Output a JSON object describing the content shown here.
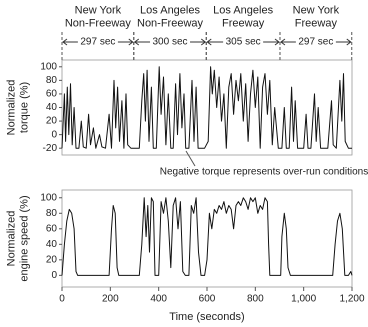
{
  "chart_data": [
    {
      "type": "line",
      "ylabel": "Normalized\ntorque (%)",
      "color": "#111",
      "xlim": [
        0,
        1200
      ],
      "ylim": [
        -30,
        110
      ],
      "yticks": [
        -20,
        0,
        20,
        40,
        60,
        80,
        100
      ],
      "annotation": "Negative torque represents over-run conditions",
      "segments": [
        {
          "label": "New York\nNon-Freeway",
          "duration": "297 sec",
          "start": 0,
          "end": 297
        },
        {
          "label": "Los Angeles\nNon-Freeway",
          "duration": "300 sec",
          "start": 297,
          "end": 597
        },
        {
          "label": "Los Angeles\nFreeway",
          "duration": "305 sec",
          "start": 597,
          "end": 902
        },
        {
          "label": "New York\nFreeway",
          "duration": "297 sec",
          "start": 902,
          "end": 1199
        }
      ],
      "x": [
        0,
        10,
        15,
        22,
        28,
        35,
        42,
        50,
        58,
        70,
        80,
        88,
        100,
        110,
        118,
        130,
        140,
        155,
        165,
        180,
        195,
        205,
        215,
        222,
        230,
        238,
        248,
        256,
        265,
        272,
        285,
        300,
        320,
        330,
        338,
        345,
        352,
        360,
        370,
        378,
        390,
        402,
        410,
        420,
        430,
        440,
        450,
        460,
        470,
        478,
        488,
        496,
        505,
        512,
        525,
        538,
        546,
        555,
        563,
        575,
        590,
        605,
        615,
        622,
        630,
        640,
        650,
        660,
        670,
        680,
        690,
        700,
        710,
        720,
        730,
        740,
        750,
        760,
        770,
        780,
        790,
        800,
        810,
        820,
        830,
        840,
        850,
        860,
        870,
        880,
        895,
        910,
        920,
        928,
        940,
        950,
        958,
        965,
        975,
        990,
        1000,
        1010,
        1018,
        1030,
        1045,
        1052,
        1060,
        1070,
        1085,
        1100,
        1115,
        1122,
        1135,
        1150,
        1158,
        1165,
        1172,
        1185,
        1200
      ],
      "values": [
        -20,
        60,
        -10,
        70,
        0,
        75,
        -15,
        40,
        -20,
        -20,
        20,
        -18,
        -20,
        30,
        -15,
        10,
        -20,
        0,
        -18,
        -20,
        30,
        -20,
        80,
        10,
        70,
        -10,
        50,
        -20,
        60,
        -15,
        -20,
        -20,
        -20,
        50,
        90,
        20,
        95,
        -10,
        70,
        -20,
        -20,
        100,
        30,
        85,
        -15,
        60,
        -20,
        -20,
        75,
        0,
        90,
        10,
        60,
        -20,
        -20,
        80,
        -10,
        70,
        -20,
        -20,
        -20,
        -10,
        100,
        60,
        95,
        40,
        85,
        20,
        60,
        -20,
        70,
        90,
        30,
        80,
        50,
        90,
        20,
        75,
        -10,
        60,
        95,
        40,
        85,
        -20,
        70,
        90,
        30,
        80,
        -15,
        40,
        -20,
        -20,
        40,
        -20,
        -20,
        70,
        -10,
        50,
        -20,
        -20,
        -20,
        30,
        -20,
        -20,
        60,
        -10,
        40,
        -20,
        -20,
        -20,
        50,
        -15,
        -20,
        80,
        20,
        90,
        -10,
        -20,
        -20
      ]
    },
    {
      "type": "line",
      "ylabel": "Normalized\nengine speed (%)",
      "xlabel": "Time (seconds)",
      "color": "#111",
      "xlim": [
        0,
        1200
      ],
      "ylim": [
        -15,
        110
      ],
      "yticks": [
        0,
        20,
        40,
        60,
        80,
        100
      ],
      "xticks": [
        0,
        200,
        400,
        600,
        800,
        {
          "value": 1000,
          "label": "1,000"
        },
        {
          "value": 1200,
          "label": "1,200"
        }
      ],
      "x": [
        0,
        10,
        20,
        30,
        40,
        50,
        58,
        65,
        100,
        180,
        195,
        205,
        212,
        220,
        228,
        235,
        300,
        320,
        330,
        340,
        348,
        355,
        362,
        370,
        378,
        385,
        400,
        410,
        420,
        430,
        440,
        450,
        460,
        470,
        480,
        490,
        500,
        510,
        525,
        535,
        545,
        555,
        565,
        575,
        590,
        600,
        610,
        620,
        630,
        640,
        650,
        660,
        670,
        680,
        690,
        700,
        710,
        720,
        730,
        740,
        750,
        760,
        770,
        780,
        790,
        800,
        810,
        820,
        830,
        840,
        850,
        855,
        860,
        890,
        905,
        910,
        920,
        928,
        935,
        945,
        970,
        1010,
        1060,
        1120,
        1130,
        1140,
        1150,
        1160,
        1170,
        1185,
        1195,
        1200
      ],
      "values": [
        0,
        40,
        70,
        85,
        80,
        60,
        5,
        0,
        0,
        0,
        0,
        60,
        90,
        80,
        10,
        0,
        0,
        0,
        40,
        100,
        50,
        90,
        30,
        100,
        95,
        0,
        0,
        95,
        80,
        100,
        70,
        10,
        90,
        100,
        60,
        95,
        5,
        0,
        0,
        90,
        80,
        100,
        30,
        0,
        0,
        20,
        80,
        60,
        85,
        80,
        90,
        85,
        95,
        80,
        90,
        85,
        60,
        90,
        95,
        90,
        100,
        95,
        85,
        100,
        95,
        100,
        80,
        90,
        85,
        100,
        95,
        40,
        0,
        0,
        0,
        50,
        80,
        60,
        10,
        0,
        0,
        0,
        0,
        0,
        40,
        70,
        80,
        60,
        0,
        0,
        5,
        0
      ]
    }
  ]
}
